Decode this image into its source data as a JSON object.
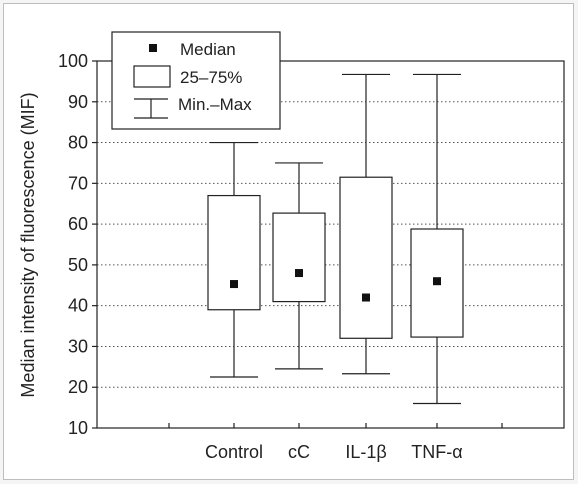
{
  "chart_data": {
    "type": "box",
    "ylabel": "Median intensity of fluorescence (MIF)",
    "ylim": [
      10,
      100
    ],
    "yticks": [
      10,
      20,
      30,
      40,
      50,
      60,
      70,
      80,
      90,
      100
    ],
    "categories": [
      "Control",
      "cC",
      "IL-1β",
      "TNF-α"
    ],
    "grid": "horizontal",
    "legend_position": "top-left",
    "legend": [
      {
        "symbol": "median-marker",
        "label": "Median"
      },
      {
        "symbol": "box",
        "label": "25–75%"
      },
      {
        "symbol": "whisker",
        "label": "Min.–Max"
      }
    ],
    "boxes": [
      {
        "category": "Control",
        "min": 22.5,
        "q1": 39,
        "median": 45.3,
        "q3": 67,
        "max": 80
      },
      {
        "category": "cC",
        "min": 24.5,
        "q1": 41,
        "median": 48,
        "q3": 62.7,
        "max": 75
      },
      {
        "category": "IL-1β",
        "min": 23.3,
        "q1": 32,
        "median": 42,
        "q3": 71.5,
        "max": 96.7
      },
      {
        "category": "TNF-α",
        "min": 16,
        "q1": 32.3,
        "median": 46,
        "q3": 58.8,
        "max": 96.7
      }
    ]
  }
}
